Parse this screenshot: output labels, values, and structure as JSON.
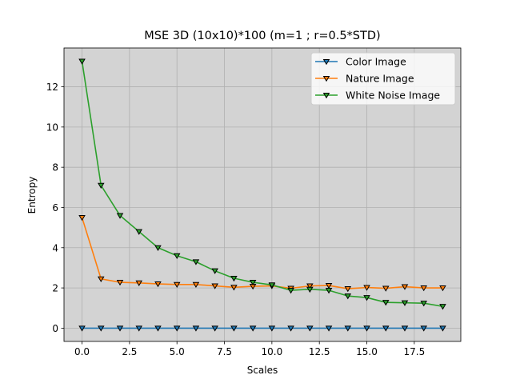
{
  "chart_data": {
    "type": "line",
    "title": "MSE 3D (10x10)*100 (m=1 ; r=0.5*STD)",
    "xlabel": "Scales",
    "ylabel": "Entropy",
    "xlim": [
      -0.95,
      19.95
    ],
    "ylim": [
      -0.66,
      13.93
    ],
    "xticks": [
      0.0,
      2.5,
      5.0,
      7.5,
      10.0,
      12.5,
      15.0,
      17.5
    ],
    "xtick_labels": [
      "0.0",
      "2.5",
      "5.0",
      "7.5",
      "10.0",
      "12.5",
      "15.0",
      "17.5"
    ],
    "yticks": [
      0,
      2,
      4,
      6,
      8,
      10,
      12
    ],
    "ytick_labels": [
      "0",
      "2",
      "4",
      "6",
      "8",
      "10",
      "12"
    ],
    "grid": true,
    "background": "#d3d3d3",
    "legend_position": "top-right",
    "marker": "triangle-down",
    "x": [
      0,
      1,
      2,
      3,
      4,
      5,
      6,
      7,
      8,
      9,
      10,
      11,
      12,
      13,
      14,
      15,
      16,
      17,
      18,
      19
    ],
    "series": [
      {
        "name": "Color Image",
        "color": "#1f77b4",
        "values": [
          0,
          0,
          0,
          0,
          0,
          0,
          0,
          0,
          0,
          0,
          0,
          0,
          0,
          0,
          0,
          0,
          0,
          0,
          0,
          0
        ]
      },
      {
        "name": "Nature Image",
        "color": "#ff7f0e",
        "values": [
          5.5,
          2.45,
          2.28,
          2.25,
          2.2,
          2.17,
          2.17,
          2.1,
          2.03,
          2.08,
          2.1,
          1.98,
          2.1,
          2.12,
          1.96,
          2.02,
          1.98,
          2.06,
          2.0,
          2.0
        ]
      },
      {
        "name": "White Noise Image",
        "color": "#2ca02c",
        "values": [
          13.27,
          7.1,
          5.6,
          4.8,
          4.0,
          3.6,
          3.3,
          2.85,
          2.48,
          2.28,
          2.15,
          1.88,
          1.93,
          1.88,
          1.6,
          1.52,
          1.28,
          1.26,
          1.24,
          1.08
        ]
      }
    ]
  }
}
